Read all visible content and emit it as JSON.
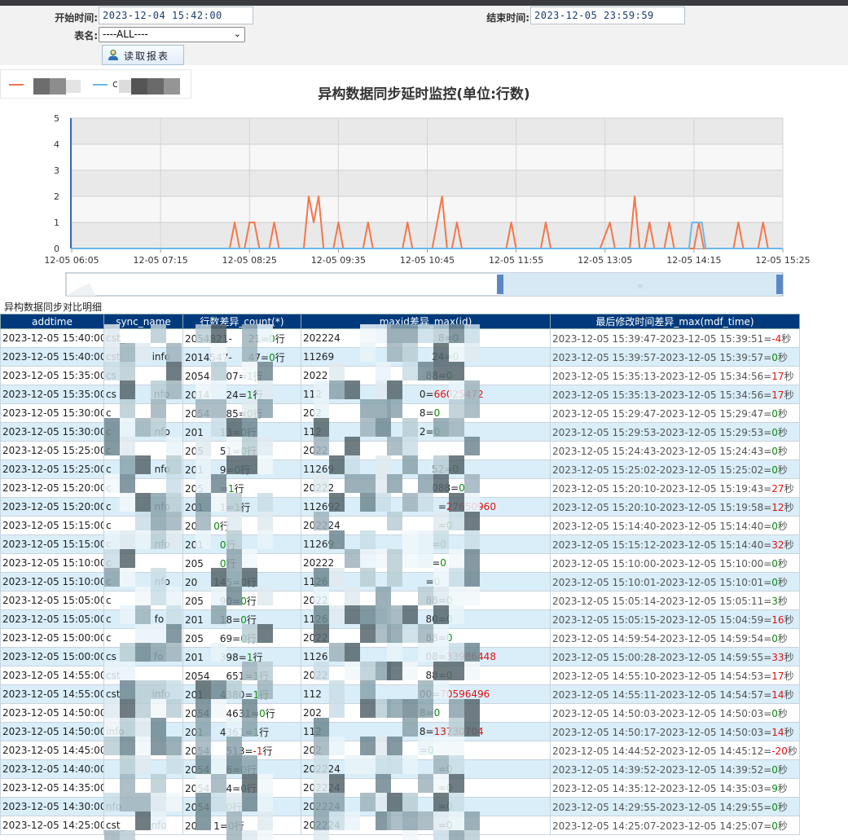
{
  "form": {
    "start_label": "开始时间:",
    "start_value": "2023-12-04 15:42:00",
    "end_label": "结束时间:",
    "end_value": "2023-12-05 23:59:59",
    "table_label": "表名:",
    "table_value": "----ALL----",
    "read_button": "读取报表"
  },
  "legend": {
    "series1_prefix": "",
    "series2_prefix": "c"
  },
  "chart_data": {
    "type": "line",
    "title": "异构数据同步延时监控(单位:行数)",
    "xlabel": "",
    "ylabel": "",
    "ylim": [
      0,
      5
    ],
    "y_ticks": [
      "0",
      "1",
      "2",
      "3",
      "4",
      "5"
    ],
    "x_ticks": [
      "12-05 06:05",
      "12-05 07:15",
      "12-05 08:25",
      "12-05 09:35",
      "12-05 10:45",
      "12-05 11:55",
      "12-05 13:05",
      "12-05 14:15",
      "12-05 15:25"
    ],
    "grid": true,
    "colors": [
      "#f4764a",
      "#6cb8e8"
    ],
    "series": [
      {
        "values": [
          [
            0,
            0
          ],
          [
            160,
            0
          ],
          [
            165,
            1
          ],
          [
            170,
            0
          ],
          [
            175,
            0
          ],
          [
            180,
            1
          ],
          [
            185,
            1
          ],
          [
            190,
            0
          ],
          [
            200,
            0
          ],
          [
            205,
            1
          ],
          [
            210,
            0
          ],
          [
            235,
            0
          ],
          [
            240,
            2
          ],
          [
            245,
            1
          ],
          [
            250,
            2
          ],
          [
            255,
            0
          ],
          [
            265,
            0
          ],
          [
            270,
            1
          ],
          [
            275,
            0
          ],
          [
            295,
            0
          ],
          [
            300,
            1
          ],
          [
            305,
            0
          ],
          [
            335,
            0
          ],
          [
            340,
            1
          ],
          [
            345,
            0
          ],
          [
            365,
            0
          ],
          [
            375,
            2
          ],
          [
            380,
            0
          ],
          [
            385,
            0
          ],
          [
            390,
            1
          ],
          [
            395,
            0
          ],
          [
            440,
            0
          ],
          [
            445,
            1
          ],
          [
            450,
            0
          ],
          [
            475,
            0
          ],
          [
            480,
            1
          ],
          [
            485,
            0
          ],
          [
            530,
            0
          ],
          [
            535,
            0
          ],
          [
            545,
            1
          ],
          [
            550,
            0
          ],
          [
            565,
            0
          ],
          [
            570,
            2
          ],
          [
            575,
            0
          ],
          [
            580,
            0
          ],
          [
            585,
            1
          ],
          [
            590,
            0
          ],
          [
            600,
            0
          ],
          [
            605,
            1
          ],
          [
            610,
            0
          ],
          [
            630,
            0
          ],
          [
            635,
            1
          ],
          [
            640,
            0
          ],
          [
            665,
            0
          ],
          [
            670,
            0
          ],
          [
            675,
            1
          ],
          [
            680,
            0
          ],
          [
            695,
            0
          ],
          [
            700,
            1
          ],
          [
            705,
            0
          ],
          [
            720,
            0
          ]
        ]
      },
      {
        "values": [
          [
            0,
            0
          ],
          [
            625,
            0
          ],
          [
            628,
            1
          ],
          [
            638,
            1
          ],
          [
            642,
            0
          ],
          [
            720,
            0
          ]
        ]
      }
    ]
  },
  "detail": {
    "caption": "异构数据同步对比明细",
    "headers": [
      "addtime",
      "sync_name",
      "行数差异_count(*)",
      "maxid差异_max(id)",
      "最后修改时间差异_max(mdf_time)"
    ],
    "rows": [
      {
        "addtime": "2023-12-05 15:40:00",
        "sync": "cst_",
        "count_a": "2054821-",
        "count_b": "21=",
        "count_v": "0行",
        "count_bad": false,
        "max_a": "202224",
        "max_b": "8=",
        "max_v": "0",
        "max_bad": false,
        "mdf": "2023-12-05 15:39:47-2023-12-05 15:39:51=",
        "mdf_v": "-4",
        "mdf_bad": true
      },
      {
        "addtime": "2023-12-05 15:40:00",
        "sync": "cst",
        "sync_b": "info",
        "count_a": "2014547-",
        "count_b": "47=",
        "count_v": "0行",
        "count_bad": false,
        "max_a": "11269",
        "max_b": "24=",
        "max_v": "0",
        "max_bad": false,
        "mdf": "2023-12-05 15:39:57-2023-12-05 15:39:57=",
        "mdf_v": "0",
        "mdf_bad": false
      },
      {
        "addtime": "2023-12-05 15:35:00",
        "sync": "cs",
        "count_a": "2054",
        "count_b": "07=",
        "count_v": "1行",
        "count_bad": false,
        "max_a": "2022",
        "max_b": "88=",
        "max_v": "0",
        "max_bad": false,
        "mdf": "2023-12-05 15:35:13-2023-12-05 15:34:56=",
        "mdf_v": "17",
        "mdf_bad": true
      },
      {
        "addtime": "2023-12-05 15:35:00",
        "sync": "cs",
        "sync_b": "nfo",
        "count_a": "2014",
        "count_b": "24=",
        "count_v": "1行",
        "count_bad": false,
        "max_a": "112",
        "max_b": "0=",
        "max_v": "66025472",
        "max_bad": true,
        "mdf": "2023-12-05 15:35:13-2023-12-05 15:34:56=",
        "mdf_v": "17",
        "mdf_bad": true
      },
      {
        "addtime": "2023-12-05 15:30:00",
        "sync": "c",
        "count_a": "2054",
        "count_b": "85=",
        "count_v": "0行",
        "count_bad": false,
        "max_a": "202",
        "max_b": "8=",
        "max_v": "0",
        "max_bad": false,
        "mdf": "2023-12-05 15:29:47-2023-12-05 15:29:47=",
        "mdf_v": "0",
        "mdf_bad": false
      },
      {
        "addtime": "2023-12-05 15:30:00",
        "sync": "c",
        "sync_b": "nfo",
        "count_a": "201",
        "count_b": "13=",
        "count_v": "0行",
        "count_bad": false,
        "max_a": "112",
        "max_b": "2=",
        "max_v": "0",
        "max_bad": false,
        "mdf": "2023-12-05 15:29:53-2023-12-05 15:29:53=",
        "mdf_v": "0",
        "mdf_bad": false
      },
      {
        "addtime": "2023-12-05 15:25:00",
        "sync": "c",
        "count_a": "205",
        "count_b": "51=",
        "count_v": "0行",
        "count_bad": false,
        "max_a": "2022",
        "max_b": "",
        "max_v": "",
        "max_bad": false,
        "mdf": "2023-12-05 15:24:43-2023-12-05 15:24:43=",
        "mdf_v": "0",
        "mdf_bad": false
      },
      {
        "addtime": "2023-12-05 15:25:00",
        "sync": "c",
        "sync_b": "nfo",
        "count_a": "201",
        "count_b": "9=",
        "count_v": "0行",
        "count_bad": false,
        "max_a": "11269",
        "max_b": "52=",
        "max_v": "0",
        "max_bad": false,
        "mdf": "2023-12-05 15:25:02-2023-12-05 15:25:02=",
        "mdf_v": "0",
        "mdf_bad": false
      },
      {
        "addtime": "2023-12-05 15:20:00",
        "sync": "c",
        "count_a": "205",
        "count_b": "=",
        "count_v": "1行",
        "count_bad": false,
        "max_a": "20222",
        "max_b": "088=",
        "max_v": "0",
        "max_bad": false,
        "mdf": "2023-12-05 15:20:10-2023-12-05 15:19:43=",
        "mdf_v": "27",
        "mdf_bad": true
      },
      {
        "addtime": "2023-12-05 15:20:00",
        "sync": "c",
        "sync_b": "nfo",
        "count_a": "201",
        "count_b": "1=",
        "count_v": "1行",
        "count_bad": false,
        "max_a": "112692",
        "max_b": "=",
        "max_v": "27650960",
        "max_bad": true,
        "mdf": "2023-12-05 15:20:10-2023-12-05 15:19:58=",
        "mdf_v": "12",
        "mdf_bad": true
      },
      {
        "addtime": "2023-12-05 15:15:00",
        "sync": "c",
        "count_a": "20",
        "count_b": "",
        "count_v": "0行",
        "count_bad": false,
        "max_a": "202224",
        "max_b": "=",
        "max_v": "0",
        "max_bad": false,
        "mdf": "2023-12-05 15:14:40-2023-12-05 15:14:40=",
        "mdf_v": "0",
        "mdf_bad": false
      },
      {
        "addtime": "2023-12-05 15:15:00",
        "sync": "c",
        "sync_b": "nfo",
        "count_a": "201",
        "count_b": "",
        "count_v": "0行",
        "count_bad": false,
        "max_a": "11269",
        "max_b": "=",
        "max_v": "0",
        "max_bad": false,
        "mdf": "2023-12-05 15:15:12-2023-12-05 15:14:40=",
        "mdf_v": "32",
        "mdf_bad": true
      },
      {
        "addtime": "2023-12-05 15:10:00",
        "sync": "c",
        "count_a": "205",
        "count_b": "",
        "count_v": "0行",
        "count_bad": false,
        "max_a": "20222",
        "max_b": "=",
        "max_v": "0",
        "max_bad": false,
        "mdf": "2023-12-05 15:10:00-2023-12-05 15:10:00=",
        "mdf_v": "0",
        "mdf_bad": false
      },
      {
        "addtime": "2023-12-05 15:10:00",
        "sync": "c",
        "sync_b": "nfo",
        "count_a": "20",
        "count_b": "145=",
        "count_v": "0行",
        "count_bad": false,
        "max_a": "1126",
        "max_b": "=",
        "max_v": "0",
        "max_bad": false,
        "mdf": "2023-12-05 15:10:01-2023-12-05 15:10:01=",
        "mdf_v": "0",
        "mdf_bad": false
      },
      {
        "addtime": "2023-12-05 15:05:00",
        "sync": "c",
        "count_a": "205",
        "count_b": "90=",
        "count_v": "0行",
        "count_bad": false,
        "max_a": "2022",
        "max_b": "88=",
        "max_v": "0",
        "max_bad": false,
        "mdf": "2023-12-05 15:05:14-2023-12-05 15:05:11=",
        "mdf_v": "3",
        "mdf_bad": false
      },
      {
        "addtime": "2023-12-05 15:05:00",
        "sync": "c",
        "sync_b": "fo",
        "count_a": "201",
        "count_b": "18=",
        "count_v": "0行",
        "count_bad": false,
        "max_a": "1126",
        "max_b": "80=",
        "max_v": "0",
        "max_bad": false,
        "mdf": "2023-12-05 15:05:15-2023-12-05 15:04:59=",
        "mdf_v": "16",
        "mdf_bad": true
      },
      {
        "addtime": "2023-12-05 15:00:00",
        "sync": "c",
        "count_a": "205",
        "count_b": "69=",
        "count_v": "0行",
        "count_bad": false,
        "max_a": "2022",
        "max_b": "88=",
        "max_v": "0",
        "max_bad": false,
        "mdf": "2023-12-05 14:59:54-2023-12-05 14:59:54=",
        "mdf_v": "0",
        "mdf_bad": false
      },
      {
        "addtime": "2023-12-05 15:00:00",
        "sync": "cs",
        "sync_b": "fo",
        "count_a": "201",
        "count_b": "398=",
        "count_v": "1行",
        "count_bad": false,
        "max_a": "1126",
        "max_b": "08=",
        "max_v": "33986448",
        "max_bad": true,
        "mdf": "2023-12-05 15:00:28-2023-12-05 14:59:55=",
        "mdf_v": "33",
        "mdf_bad": true
      },
      {
        "addtime": "2023-12-05 14:55:00",
        "sync": "cst",
        "count_a": "2054",
        "count_b": "651=",
        "count_v": "1行",
        "count_bad": false,
        "max_a": "2022",
        "max_b": "88=",
        "max_v": "0",
        "max_bad": false,
        "mdf": "2023-12-05 14:55:10-2023-12-05 14:54:53=",
        "mdf_v": "17",
        "mdf_bad": true
      },
      {
        "addtime": "2023-12-05 14:55:00",
        "sync": "cst",
        "sync_b": "info",
        "count_a": "201",
        "count_b": "4380=",
        "count_v": "1行",
        "count_bad": false,
        "max_a": "112",
        "max_b": "00=",
        "max_v": "70596496",
        "max_bad": true,
        "mdf": "2023-12-05 14:55:11-2023-12-05 14:54:57=",
        "mdf_v": "14",
        "mdf_bad": true
      },
      {
        "addtime": "2023-12-05 14:50:00",
        "sync": "",
        "count_a": "2054",
        "count_b": "4631=",
        "count_v": "0行",
        "count_bad": false,
        "max_a": "202",
        "max_b": "8=",
        "max_v": "0",
        "max_bad": false,
        "mdf": "2023-12-05 14:50:03-2023-12-05 14:50:03=",
        "mdf_v": "0",
        "mdf_bad": false
      },
      {
        "addtime": "2023-12-05 14:50:00",
        "sync": "",
        "sync_b": "info",
        "count_a": "201",
        "count_b": "4361=",
        "count_v": "1行",
        "count_bad": false,
        "max_a": "112",
        "max_b": "8=",
        "max_v": "13730704",
        "max_bad": true,
        "mdf": "2023-12-05 14:50:17-2023-12-05 14:50:03=",
        "mdf_v": "14",
        "mdf_bad": true
      },
      {
        "addtime": "2023-12-05 14:45:00",
        "sync": "",
        "count_a": "2054",
        "count_b": "513=",
        "count_v": "-1行",
        "count_bad": true,
        "max_a": "202",
        "max_b": "=",
        "max_v": "0",
        "max_bad": false,
        "mdf": "2023-12-05 14:44:52-2023-12-05 14:45:12=",
        "mdf_v": "-20",
        "mdf_bad": true
      },
      {
        "addtime": "2023-12-05 14:40:00",
        "sync": "",
        "count_a": "2054",
        "count_b": "6=",
        "count_v": "0行",
        "count_bad": false,
        "max_a": "202224",
        "max_b": "=",
        "max_v": "0",
        "max_bad": false,
        "mdf": "2023-12-05 14:39:52-2023-12-05 14:39:52=",
        "mdf_v": "0",
        "mdf_bad": false
      },
      {
        "addtime": "2023-12-05 14:35:00",
        "sync": "",
        "count_a": "2054",
        "count_b": "4=",
        "count_v": "0行",
        "count_bad": false,
        "max_a": "202224",
        "max_b": "=",
        "max_v": "0",
        "max_bad": false,
        "mdf": "2023-12-05 14:35:12-2023-12-05 14:35:03=",
        "mdf_v": "9",
        "mdf_bad": false
      },
      {
        "addtime": "2023-12-05 14:30:00",
        "sync": "",
        "sync_b": "nfo",
        "count_a": "2054",
        "count_b": "",
        "count_v": "0行",
        "count_bad": false,
        "max_a": "202224",
        "max_b": "=",
        "max_v": "0",
        "max_bad": false,
        "mdf": "2023-12-05 14:29:55-2023-12-05 14:29:55=",
        "mdf_v": "0",
        "mdf_bad": false
      },
      {
        "addtime": "2023-12-05 14:25:00",
        "sync": "cst_",
        "sync_b": "nfo",
        "count_a": "20",
        "count_b": "1=",
        "count_v": "0行",
        "count_bad": false,
        "max_a": "202224",
        "max_b": "=",
        "max_v": "0",
        "max_bad": false,
        "mdf": "2023-12-05 14:25:07-2023-12-05 14:25:07=",
        "mdf_v": "0",
        "mdf_bad": false
      }
    ],
    "suffix_sec": "秒"
  }
}
